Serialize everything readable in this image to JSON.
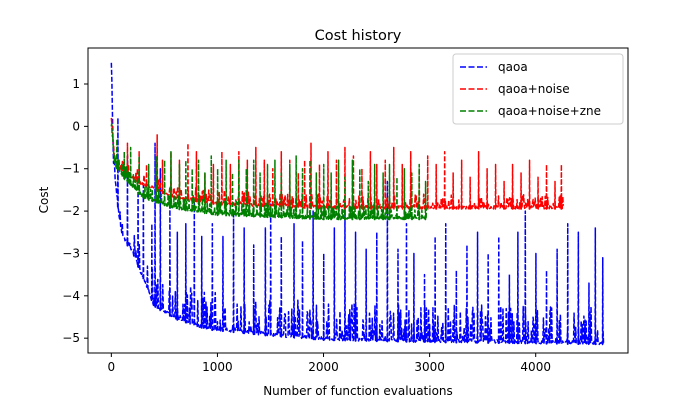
{
  "chart_data": {
    "type": "line",
    "title": "Cost history",
    "xlabel": "Number of function evaluations",
    "ylabel": "Cost",
    "xlim": [
      -220,
      4870
    ],
    "ylim": [
      -5.35,
      1.85
    ],
    "xticks": [
      0,
      1000,
      2000,
      3000,
      4000
    ],
    "yticks": [
      1,
      0,
      -1,
      -2,
      -3,
      -4,
      -5
    ],
    "grid": false,
    "legend_position": "top-right",
    "line_style": "dashed",
    "series": [
      {
        "name": "qaoa",
        "color": "#0000ff",
        "length": 4640,
        "start": 1.5,
        "floor_points": [
          [
            0,
            1.5
          ],
          [
            20,
            -0.9
          ],
          [
            60,
            -1.9
          ],
          [
            100,
            -2.6
          ],
          [
            200,
            -3.0
          ],
          [
            300,
            -3.6
          ],
          [
            400,
            -4.25
          ],
          [
            600,
            -4.55
          ],
          [
            900,
            -4.8
          ],
          [
            1500,
            -4.95
          ],
          [
            2000,
            -5.05
          ],
          [
            3000,
            -5.1
          ],
          [
            4640,
            -5.15
          ]
        ],
        "spikes": [
          [
            60,
            0.2
          ],
          [
            150,
            -0.7
          ],
          [
            250,
            -1.2
          ],
          [
            300,
            -1.4
          ],
          [
            380,
            -2.3
          ],
          [
            410,
            -0.4
          ],
          [
            460,
            -1.0
          ],
          [
            550,
            -1.8
          ],
          [
            620,
            -2.5
          ],
          [
            700,
            -2.3
          ],
          [
            780,
            -1.8
          ],
          [
            850,
            -2.6
          ],
          [
            950,
            -2.3
          ],
          [
            1050,
            -2.6
          ],
          [
            1150,
            -2.0
          ],
          [
            1250,
            -2.4
          ],
          [
            1340,
            -2.8
          ],
          [
            1450,
            -2.4
          ],
          [
            1500,
            -1.8
          ],
          [
            1600,
            -2.6
          ],
          [
            1720,
            -2.3
          ],
          [
            1800,
            -2.7
          ],
          [
            1900,
            -2.0
          ],
          [
            2000,
            -3.0
          ],
          [
            2100,
            -2.4
          ],
          [
            2200,
            -1.8
          ],
          [
            2300,
            -2.5
          ],
          [
            2400,
            -2.9
          ],
          [
            2500,
            -2.5
          ],
          [
            2600,
            -1.3
          ],
          [
            2700,
            -2.9
          ],
          [
            2780,
            -2.3
          ],
          [
            2850,
            -3.0
          ],
          [
            2950,
            -3.5
          ],
          [
            3050,
            -2.6
          ],
          [
            3150,
            -2.3
          ],
          [
            3250,
            -3.4
          ],
          [
            3350,
            -2.8
          ],
          [
            3450,
            -2.5
          ],
          [
            3550,
            -3.0
          ],
          [
            3650,
            -2.6
          ],
          [
            3750,
            -3.5
          ],
          [
            3830,
            -2.5
          ],
          [
            3900,
            -2.0
          ],
          [
            4000,
            -3.0
          ],
          [
            4100,
            -3.4
          ],
          [
            4200,
            -2.9
          ],
          [
            4300,
            -2.3
          ],
          [
            4400,
            -2.5
          ],
          [
            4500,
            -3.7
          ],
          [
            4560,
            -2.4
          ],
          [
            4630,
            -3.1
          ]
        ]
      },
      {
        "name": "qaoa+noise",
        "color": "#ff0000",
        "length": 4260,
        "start": 0.2,
        "floor_points": [
          [
            0,
            0.2
          ],
          [
            30,
            -0.8
          ],
          [
            100,
            -1.1
          ],
          [
            300,
            -1.4
          ],
          [
            600,
            -1.7
          ],
          [
            1000,
            -1.85
          ],
          [
            2000,
            -1.95
          ],
          [
            4260,
            -1.95
          ]
        ],
        "spikes": [
          [
            150,
            -0.4
          ],
          [
            260,
            -0.6
          ],
          [
            330,
            -0.9
          ],
          [
            430,
            -0.2
          ],
          [
            480,
            -0.8
          ],
          [
            560,
            -0.6
          ],
          [
            640,
            -0.8
          ],
          [
            720,
            -0.4
          ],
          [
            800,
            -0.6
          ],
          [
            880,
            -1.1
          ],
          [
            960,
            -0.9
          ],
          [
            1040,
            -0.6
          ],
          [
            1120,
            -0.9
          ],
          [
            1200,
            -0.6
          ],
          [
            1280,
            -0.8
          ],
          [
            1360,
            -0.5
          ],
          [
            1440,
            -0.8
          ],
          [
            1520,
            -1.0
          ],
          [
            1600,
            -0.6
          ],
          [
            1680,
            -0.8
          ],
          [
            1760,
            -1.1
          ],
          [
            1820,
            -0.8
          ],
          [
            1880,
            -0.4
          ],
          [
            1960,
            -0.9
          ],
          [
            2040,
            -0.6
          ],
          [
            2120,
            -0.8
          ],
          [
            2200,
            -0.5
          ],
          [
            2280,
            -0.7
          ],
          [
            2360,
            -1.0
          ],
          [
            2440,
            -0.6
          ],
          [
            2500,
            -0.9
          ],
          [
            2580,
            -0.8
          ],
          [
            2660,
            -0.5
          ],
          [
            2740,
            -0.9
          ],
          [
            2820,
            -0.6
          ],
          [
            2900,
            -1.0
          ],
          [
            2980,
            -0.7
          ],
          [
            3060,
            -0.9
          ],
          [
            3140,
            -0.6
          ],
          [
            3220,
            -1.1
          ],
          [
            3300,
            -0.8
          ],
          [
            3380,
            -1.2
          ],
          [
            3460,
            -0.6
          ],
          [
            3540,
            -1.0
          ],
          [
            3620,
            -0.9
          ],
          [
            3700,
            -1.3
          ],
          [
            3780,
            -0.9
          ],
          [
            3860,
            -1.1
          ],
          [
            3940,
            -0.8
          ],
          [
            4020,
            -1.2
          ],
          [
            4100,
            -0.9
          ],
          [
            4180,
            -1.3
          ],
          [
            4240,
            -0.9
          ]
        ]
      },
      {
        "name": "qaoa+noise+zne",
        "color": "#008000",
        "length": 2970,
        "start": 0.0,
        "floor_points": [
          [
            0,
            0.0
          ],
          [
            30,
            -0.9
          ],
          [
            100,
            -1.2
          ],
          [
            300,
            -1.7
          ],
          [
            600,
            -1.95
          ],
          [
            1000,
            -2.1
          ],
          [
            2000,
            -2.2
          ],
          [
            2970,
            -2.2
          ]
        ],
        "spikes": [
          [
            50,
            -0.3
          ],
          [
            120,
            -0.6
          ],
          [
            180,
            -0.5
          ],
          [
            260,
            -0.7
          ],
          [
            350,
            -0.9
          ],
          [
            420,
            -0.7
          ],
          [
            500,
            -0.8
          ],
          [
            560,
            -0.6
          ],
          [
            640,
            -0.9
          ],
          [
            700,
            -0.8
          ],
          [
            760,
            -1.0
          ],
          [
            820,
            -0.8
          ],
          [
            880,
            -1.1
          ],
          [
            940,
            -0.7
          ],
          [
            1000,
            -1.0
          ],
          [
            1080,
            -0.8
          ],
          [
            1140,
            -1.1
          ],
          [
            1200,
            -0.8
          ],
          [
            1270,
            -1.0
          ],
          [
            1340,
            -0.8
          ],
          [
            1400,
            -1.1
          ],
          [
            1470,
            -0.9
          ],
          [
            1540,
            -0.8
          ],
          [
            1600,
            -1.1
          ],
          [
            1680,
            -0.9
          ],
          [
            1740,
            -0.7
          ],
          [
            1800,
            -1.0
          ],
          [
            1870,
            -0.8
          ],
          [
            1930,
            -1.1
          ],
          [
            2000,
            -0.9
          ],
          [
            2070,
            -1.1
          ],
          [
            2140,
            -0.8
          ],
          [
            2200,
            -1.2
          ],
          [
            2270,
            -0.8
          ],
          [
            2340,
            -1.0
          ],
          [
            2420,
            -1.3
          ],
          [
            2480,
            -0.9
          ],
          [
            2560,
            -1.1
          ],
          [
            2620,
            -0.9
          ],
          [
            2690,
            -1.2
          ],
          [
            2760,
            -1.0
          ],
          [
            2830,
            -1.1
          ],
          [
            2900,
            -0.9
          ],
          [
            2960,
            -1.3
          ]
        ]
      }
    ]
  }
}
